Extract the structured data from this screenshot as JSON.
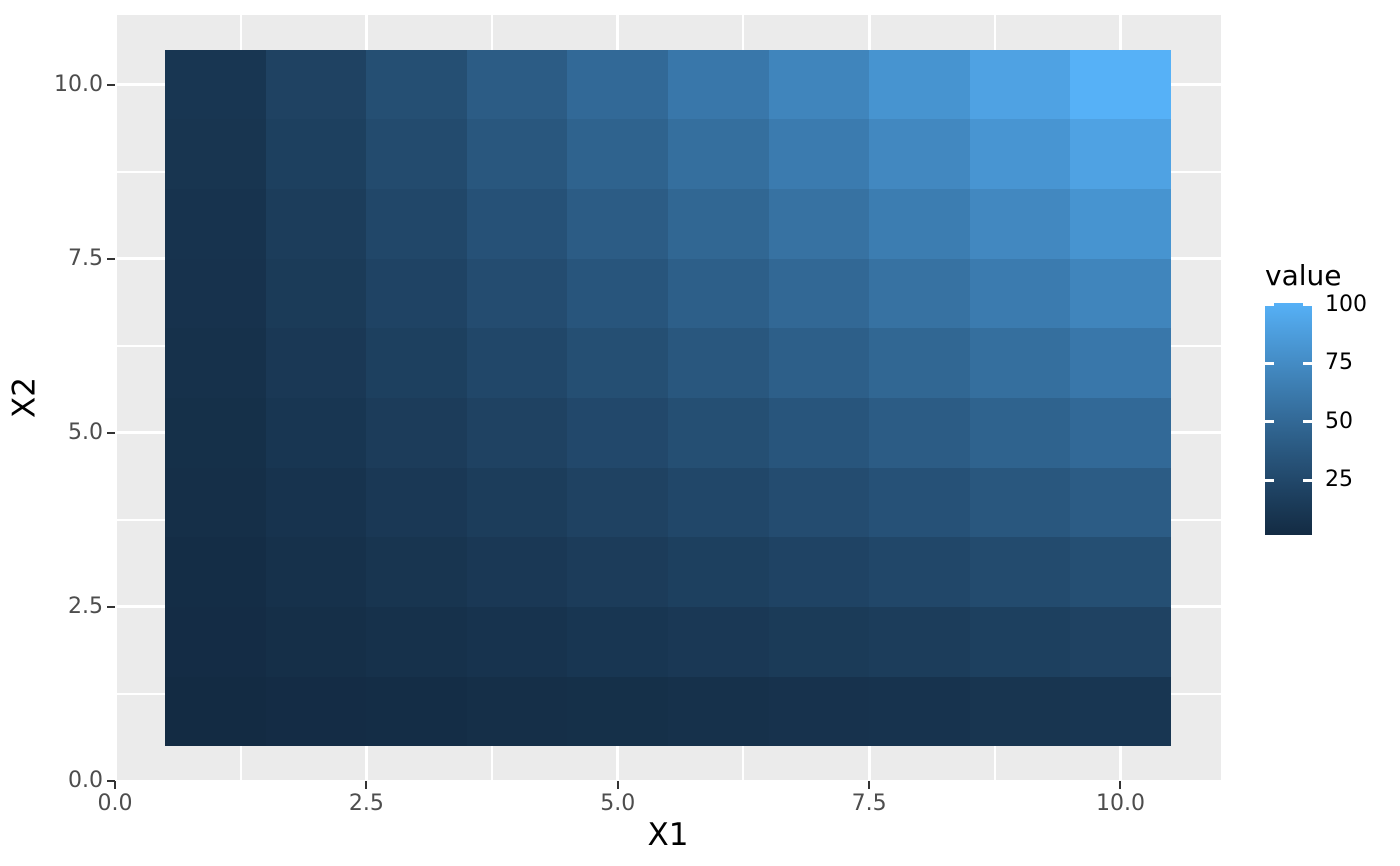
{
  "chart": {
    "x_axis": {
      "title": "X1",
      "tick_labels": [
        "0.0",
        "2.5",
        "5.0",
        "7.5",
        "10.0"
      ],
      "tick_values": [
        0,
        2.5,
        5,
        7.5,
        10
      ],
      "minor_tick_values": [
        1.25,
        3.75,
        6.25,
        8.75
      ]
    },
    "y_axis": {
      "title": "X2",
      "tick_labels": [
        "0.0",
        "2.5",
        "5.0",
        "7.5",
        "10.0"
      ],
      "tick_values": [
        0,
        2.5,
        5,
        7.5,
        10
      ],
      "minor_tick_values": [
        1.25,
        3.75,
        6.25,
        8.75
      ]
    }
  },
  "chart_data": {
    "type": "heatmap",
    "title": "",
    "xlabel": "X1",
    "ylabel": "X2",
    "x": [
      1,
      2,
      3,
      4,
      5,
      6,
      7,
      8,
      9,
      10
    ],
    "y": [
      1,
      2,
      3,
      4,
      5,
      6,
      7,
      8,
      9,
      10
    ],
    "values": [
      [
        1,
        2,
        3,
        4,
        5,
        6,
        7,
        8,
        9,
        10
      ],
      [
        2,
        4,
        6,
        8,
        10,
        12,
        14,
        16,
        18,
        20
      ],
      [
        3,
        6,
        9,
        12,
        15,
        18,
        21,
        24,
        27,
        30
      ],
      [
        4,
        8,
        12,
        16,
        20,
        24,
        28,
        32,
        36,
        40
      ],
      [
        5,
        10,
        15,
        20,
        25,
        30,
        35,
        40,
        45,
        50
      ],
      [
        6,
        12,
        18,
        24,
        30,
        36,
        42,
        48,
        54,
        60
      ],
      [
        7,
        14,
        21,
        28,
        35,
        42,
        49,
        56,
        63,
        70
      ],
      [
        8,
        16,
        24,
        32,
        40,
        48,
        56,
        64,
        72,
        80
      ],
      [
        9,
        18,
        27,
        36,
        45,
        54,
        63,
        72,
        81,
        90
      ],
      [
        10,
        20,
        30,
        40,
        50,
        60,
        70,
        80,
        90,
        100
      ]
    ],
    "xlim": [
      0,
      11
    ],
    "ylim": [
      0,
      11
    ],
    "fill_scale": {
      "low_color": "#132B43",
      "high_color": "#56B1F7",
      "limits": [
        1,
        100
      ],
      "space": "lab"
    },
    "legend": {
      "title": "value",
      "tick_values": [
        100,
        75,
        50,
        25
      ],
      "tick_labels": [
        "100",
        "75",
        "50",
        "25"
      ],
      "position": "right"
    },
    "grid": true
  },
  "colors": {
    "page_background": "#FFFFFF",
    "panel_background": "#EBEBEB",
    "grid_line": "#FFFFFF",
    "axis_text": "#4D4D4D",
    "axis_title": "#000000",
    "tick_mark": "#333333",
    "legend_text": "#000000"
  }
}
